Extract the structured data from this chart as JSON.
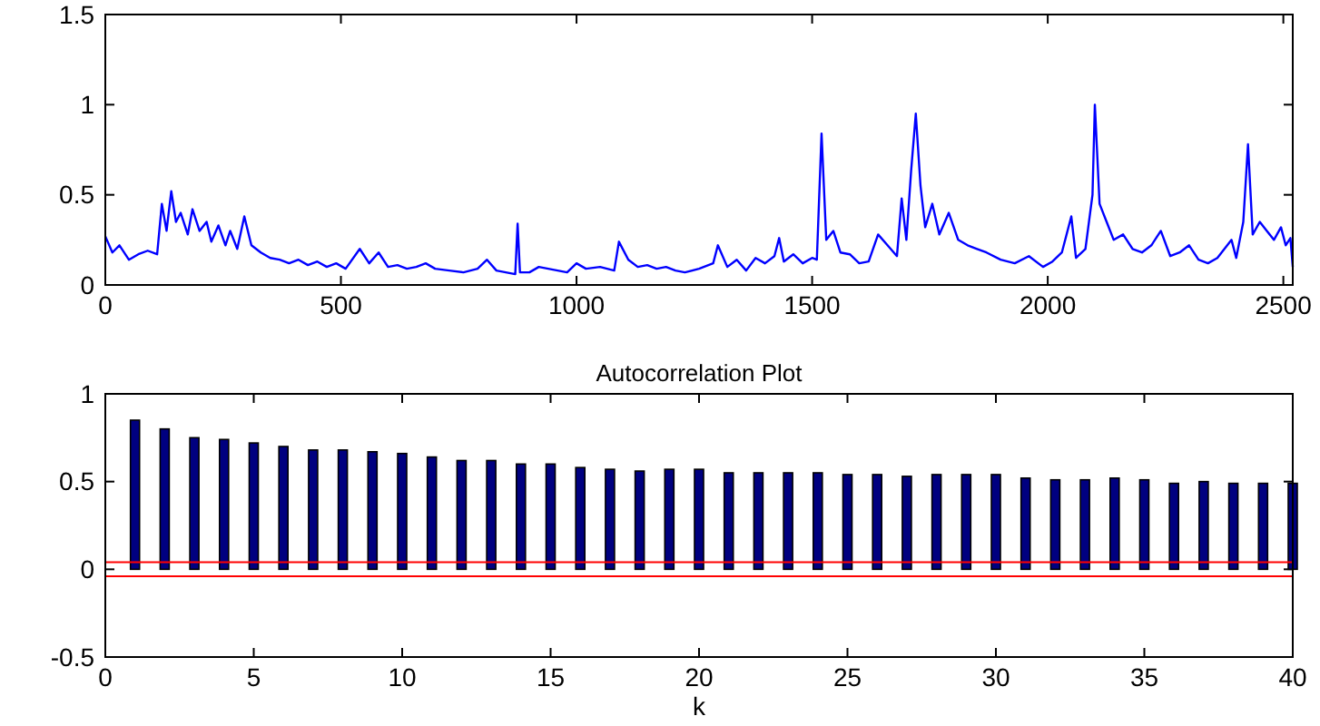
{
  "chart_data": [
    {
      "type": "line",
      "x": [
        0,
        15,
        30,
        50,
        70,
        90,
        110,
        120,
        130,
        140,
        150,
        160,
        175,
        185,
        200,
        215,
        225,
        240,
        255,
        265,
        280,
        295,
        310,
        330,
        350,
        370,
        390,
        410,
        430,
        450,
        470,
        490,
        510,
        540,
        560,
        580,
        600,
        620,
        640,
        660,
        680,
        700,
        730,
        760,
        790,
        810,
        830,
        850,
        870,
        875,
        880,
        900,
        920,
        940,
        960,
        980,
        1000,
        1020,
        1050,
        1080,
        1090,
        1110,
        1130,
        1150,
        1170,
        1190,
        1210,
        1230,
        1260,
        1290,
        1300,
        1320,
        1340,
        1360,
        1380,
        1400,
        1420,
        1430,
        1440,
        1460,
        1480,
        1500,
        1510,
        1520,
        1530,
        1545,
        1560,
        1580,
        1600,
        1620,
        1640,
        1660,
        1680,
        1690,
        1700,
        1710,
        1720,
        1730,
        1740,
        1755,
        1770,
        1790,
        1810,
        1830,
        1850,
        1870,
        1900,
        1930,
        1960,
        1990,
        2010,
        2030,
        2050,
        2060,
        2080,
        2095,
        2100,
        2110,
        2125,
        2140,
        2160,
        2180,
        2200,
        2220,
        2240,
        2260,
        2280,
        2300,
        2320,
        2340,
        2360,
        2390,
        2400,
        2415,
        2425,
        2435,
        2450,
        2465,
        2480,
        2495,
        2505,
        2515,
        2520
      ],
      "series": [
        {
          "color": "#0000ff",
          "values": [
            0.27,
            0.18,
            0.22,
            0.14,
            0.17,
            0.19,
            0.17,
            0.45,
            0.3,
            0.52,
            0.35,
            0.4,
            0.28,
            0.42,
            0.3,
            0.35,
            0.24,
            0.33,
            0.22,
            0.3,
            0.2,
            0.38,
            0.22,
            0.18,
            0.15,
            0.14,
            0.12,
            0.14,
            0.11,
            0.13,
            0.1,
            0.12,
            0.09,
            0.2,
            0.12,
            0.18,
            0.1,
            0.11,
            0.09,
            0.1,
            0.12,
            0.09,
            0.08,
            0.07,
            0.09,
            0.14,
            0.08,
            0.07,
            0.06,
            0.34,
            0.07,
            0.07,
            0.1,
            0.09,
            0.08,
            0.07,
            0.12,
            0.09,
            0.1,
            0.08,
            0.24,
            0.14,
            0.1,
            0.11,
            0.09,
            0.1,
            0.08,
            0.07,
            0.09,
            0.12,
            0.22,
            0.1,
            0.14,
            0.08,
            0.15,
            0.12,
            0.16,
            0.26,
            0.13,
            0.17,
            0.12,
            0.15,
            0.14,
            0.84,
            0.25,
            0.3,
            0.18,
            0.17,
            0.12,
            0.13,
            0.28,
            0.22,
            0.16,
            0.48,
            0.25,
            0.63,
            0.95,
            0.55,
            0.32,
            0.45,
            0.28,
            0.4,
            0.25,
            0.22,
            0.2,
            0.18,
            0.14,
            0.12,
            0.16,
            0.1,
            0.13,
            0.18,
            0.38,
            0.15,
            0.2,
            0.5,
            1.0,
            0.45,
            0.35,
            0.25,
            0.28,
            0.2,
            0.18,
            0.22,
            0.3,
            0.16,
            0.18,
            0.22,
            0.14,
            0.12,
            0.15,
            0.25,
            0.15,
            0.35,
            0.78,
            0.28,
            0.35,
            0.3,
            0.25,
            0.32,
            0.22,
            0.26,
            0.1
          ]
        }
      ],
      "xlim": [
        0,
        2520
      ],
      "xticks": [
        0,
        500,
        1000,
        1500,
        2000,
        2500
      ],
      "ylim": [
        0,
        1.5
      ],
      "yticks": [
        0,
        0.5,
        1,
        1.5
      ]
    },
    {
      "type": "bar",
      "title": "Autocorrelation Plot",
      "xlabel": "k",
      "x": [
        1,
        2,
        3,
        4,
        5,
        6,
        7,
        8,
        9,
        10,
        11,
        12,
        13,
        14,
        15,
        16,
        17,
        18,
        19,
        20,
        21,
        22,
        23,
        24,
        25,
        26,
        27,
        28,
        29,
        30,
        31,
        32,
        33,
        34,
        35,
        36,
        37,
        38,
        39,
        40
      ],
      "series": [
        {
          "color": "#000080",
          "values": [
            0.85,
            0.8,
            0.75,
            0.74,
            0.72,
            0.7,
            0.68,
            0.68,
            0.67,
            0.66,
            0.64,
            0.62,
            0.62,
            0.6,
            0.6,
            0.58,
            0.57,
            0.56,
            0.57,
            0.57,
            0.55,
            0.55,
            0.55,
            0.55,
            0.54,
            0.54,
            0.53,
            0.54,
            0.54,
            0.54,
            0.52,
            0.51,
            0.51,
            0.52,
            0.51,
            0.49,
            0.5,
            0.49,
            0.49,
            0.49
          ]
        }
      ],
      "ref_lines": [
        {
          "axis": "y",
          "value": 0.04,
          "color": "#ff0000"
        },
        {
          "axis": "y",
          "value": -0.04,
          "color": "#ff0000"
        }
      ],
      "xlim": [
        0,
        40
      ],
      "xticks": [
        0,
        5,
        10,
        15,
        20,
        25,
        30,
        35,
        40
      ],
      "ylim": [
        -0.5,
        1
      ],
      "yticks": [
        -0.5,
        0,
        0.5,
        1
      ]
    }
  ]
}
